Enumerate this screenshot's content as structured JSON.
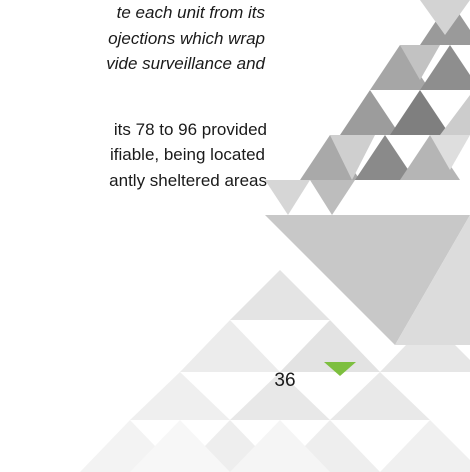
{
  "body": {
    "italic_lines": [
      "te each unit from its",
      "ojections which wrap",
      "vide surveillance and"
    ],
    "lines": [
      "its 78 to 96 provided",
      "ifiable, being located",
      "antly sheltered areas"
    ]
  },
  "footer": {
    "page_number": "36"
  }
}
